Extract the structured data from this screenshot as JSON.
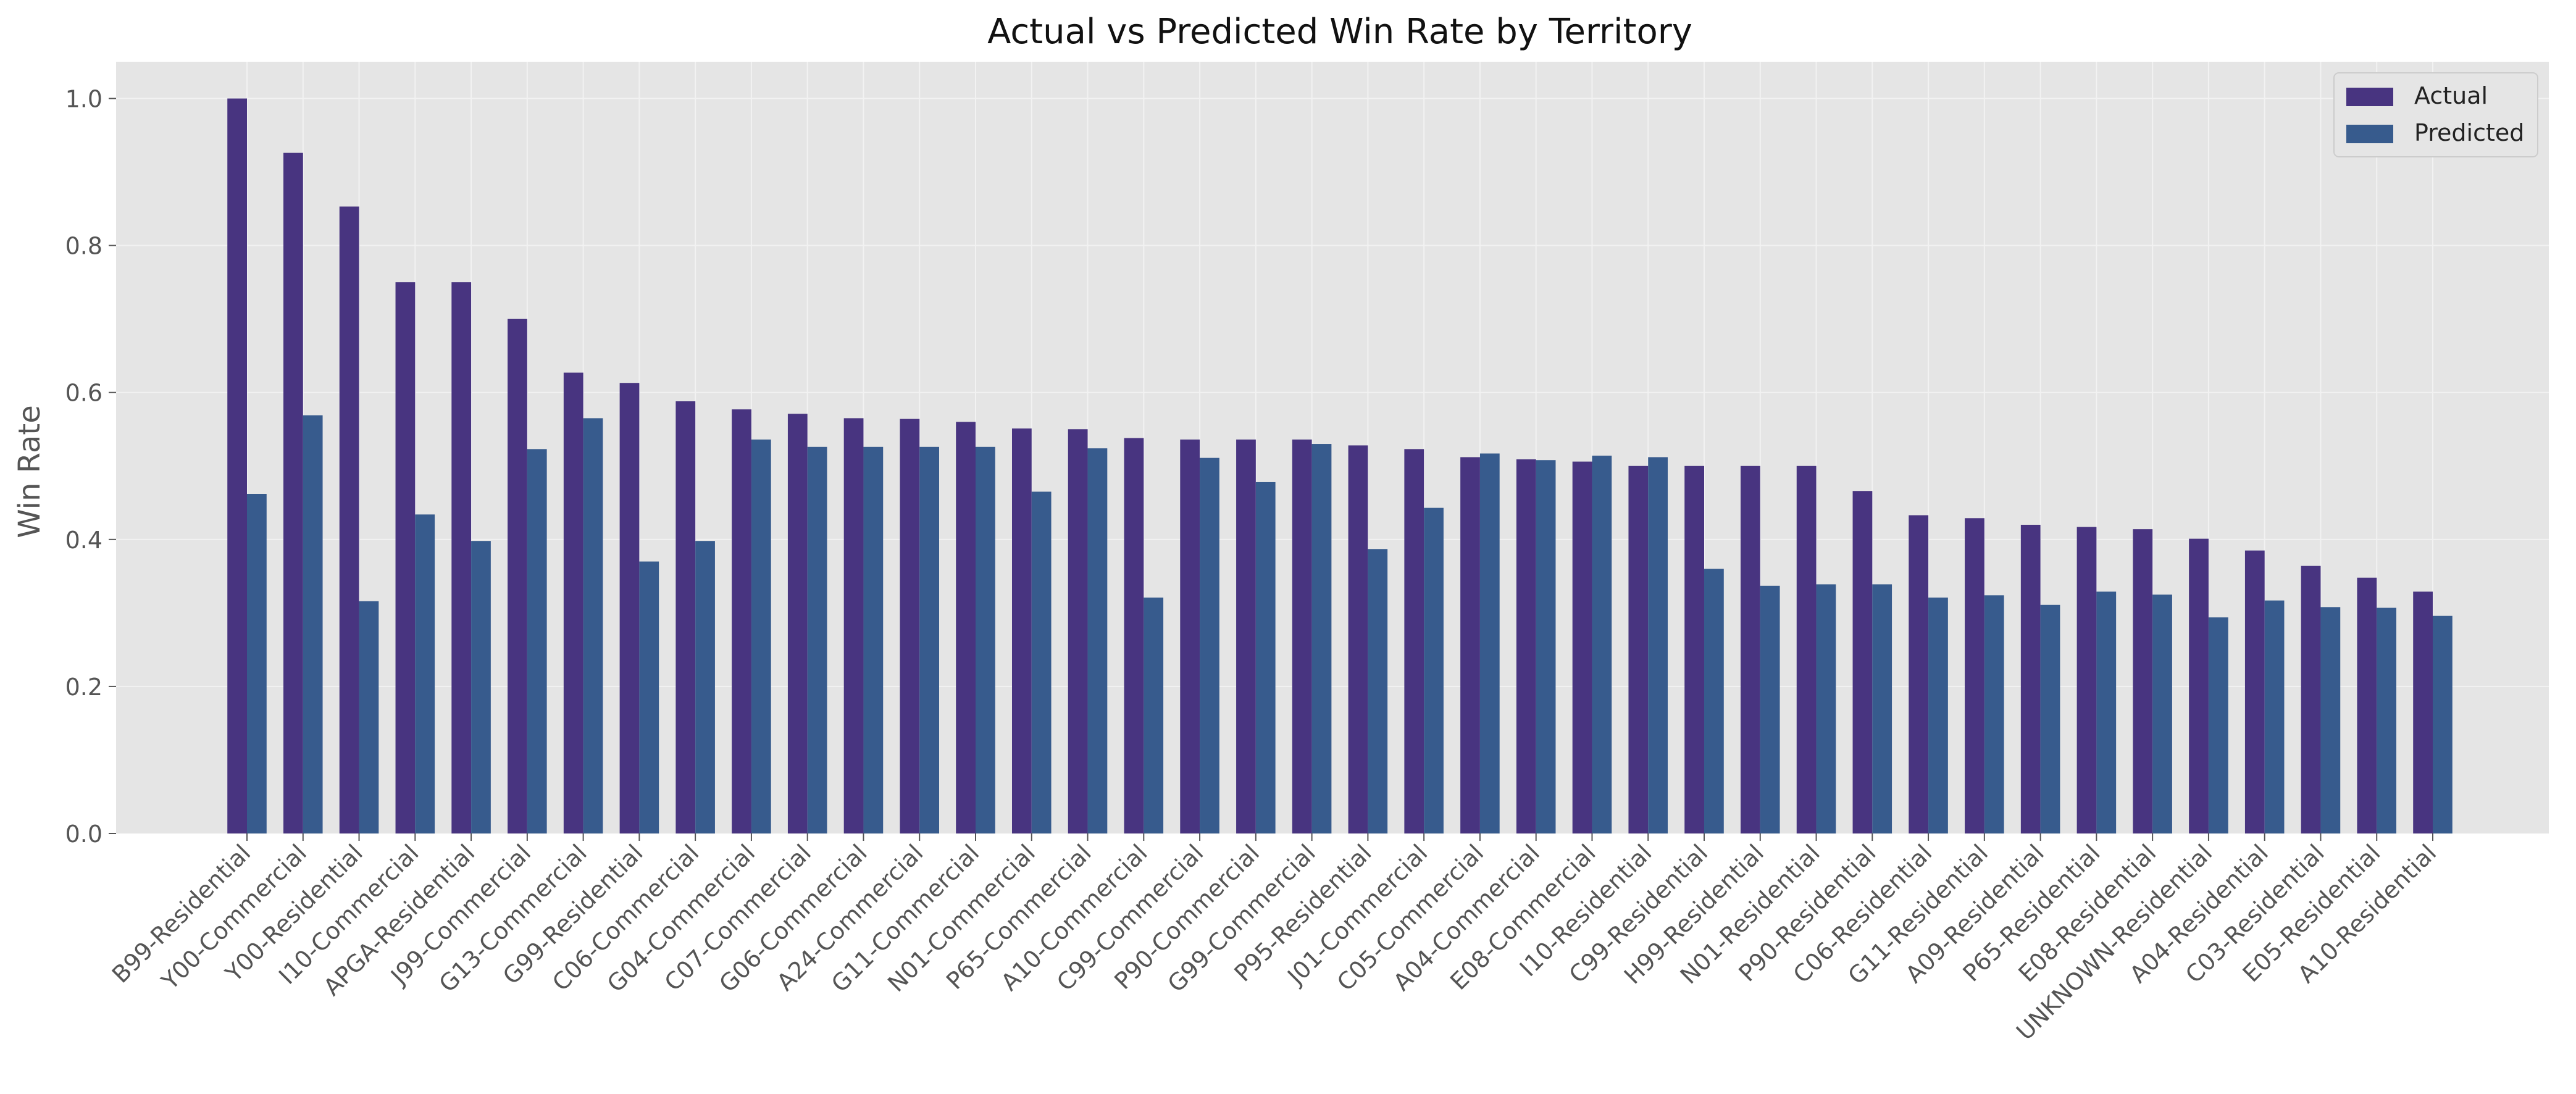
{
  "chart_data": {
    "type": "bar",
    "title": "Actual vs Predicted Win Rate by Territory",
    "xlabel": "",
    "ylabel": "Win Rate",
    "ylim": [
      0,
      1.05
    ],
    "yticks": [
      0.0,
      0.2,
      0.4,
      0.6,
      0.8,
      1.0
    ],
    "ytick_labels": [
      "0.0",
      "0.2",
      "0.4",
      "0.6",
      "0.8",
      "1.0"
    ],
    "grid": true,
    "legend_position": "top-right",
    "categories": [
      "B99-Residential",
      "Y00-Commercial",
      "Y00-Residential",
      "I10-Commercial",
      "APGA-Residential",
      "J99-Commercial",
      "G13-Commercial",
      "G99-Residential",
      "C06-Commercial",
      "G04-Commercial",
      "C07-Commercial",
      "G06-Commercial",
      "A24-Commercial",
      "G11-Commercial",
      "N01-Commercial",
      "P65-Commercial",
      "A10-Commercial",
      "C99-Commercial",
      "P90-Commercial",
      "G99-Commercial",
      "P95-Residential",
      "J01-Commercial",
      "C05-Commercial",
      "A04-Commercial",
      "E08-Commercial",
      "I10-Residential",
      "C99-Residential",
      "H99-Residential",
      "N01-Residential",
      "P90-Residential",
      "C06-Residential",
      "G11-Residential",
      "A09-Residential",
      "P65-Residential",
      "E08-Residential",
      "UNKNOWN-Residential",
      "A04-Residential",
      "C03-Residential",
      "E05-Residential",
      "A10-Residential"
    ],
    "series": [
      {
        "name": "Actual",
        "color": "#483480",
        "values": [
          1.0,
          0.926,
          0.853,
          0.75,
          0.75,
          0.7,
          0.627,
          0.613,
          0.588,
          0.577,
          0.571,
          0.565,
          0.564,
          0.56,
          0.551,
          0.55,
          0.538,
          0.536,
          0.536,
          0.536,
          0.528,
          0.523,
          0.512,
          0.509,
          0.506,
          0.5,
          0.5,
          0.5,
          0.5,
          0.466,
          0.433,
          0.429,
          0.42,
          0.417,
          0.414,
          0.401,
          0.385,
          0.364,
          0.348,
          0.329
        ]
      },
      {
        "name": "Predicted",
        "color": "#375b8d",
        "values": [
          0.462,
          0.569,
          0.316,
          0.434,
          0.398,
          0.523,
          0.565,
          0.37,
          0.398,
          0.536,
          0.526,
          0.526,
          0.526,
          0.526,
          0.465,
          0.524,
          0.321,
          0.511,
          0.478,
          0.53,
          0.387,
          0.443,
          0.517,
          0.508,
          0.514,
          0.512,
          0.36,
          0.337,
          0.339,
          0.339,
          0.321,
          0.324,
          0.311,
          0.329,
          0.325,
          0.294,
          0.317,
          0.308,
          0.307,
          0.296
        ]
      }
    ]
  }
}
